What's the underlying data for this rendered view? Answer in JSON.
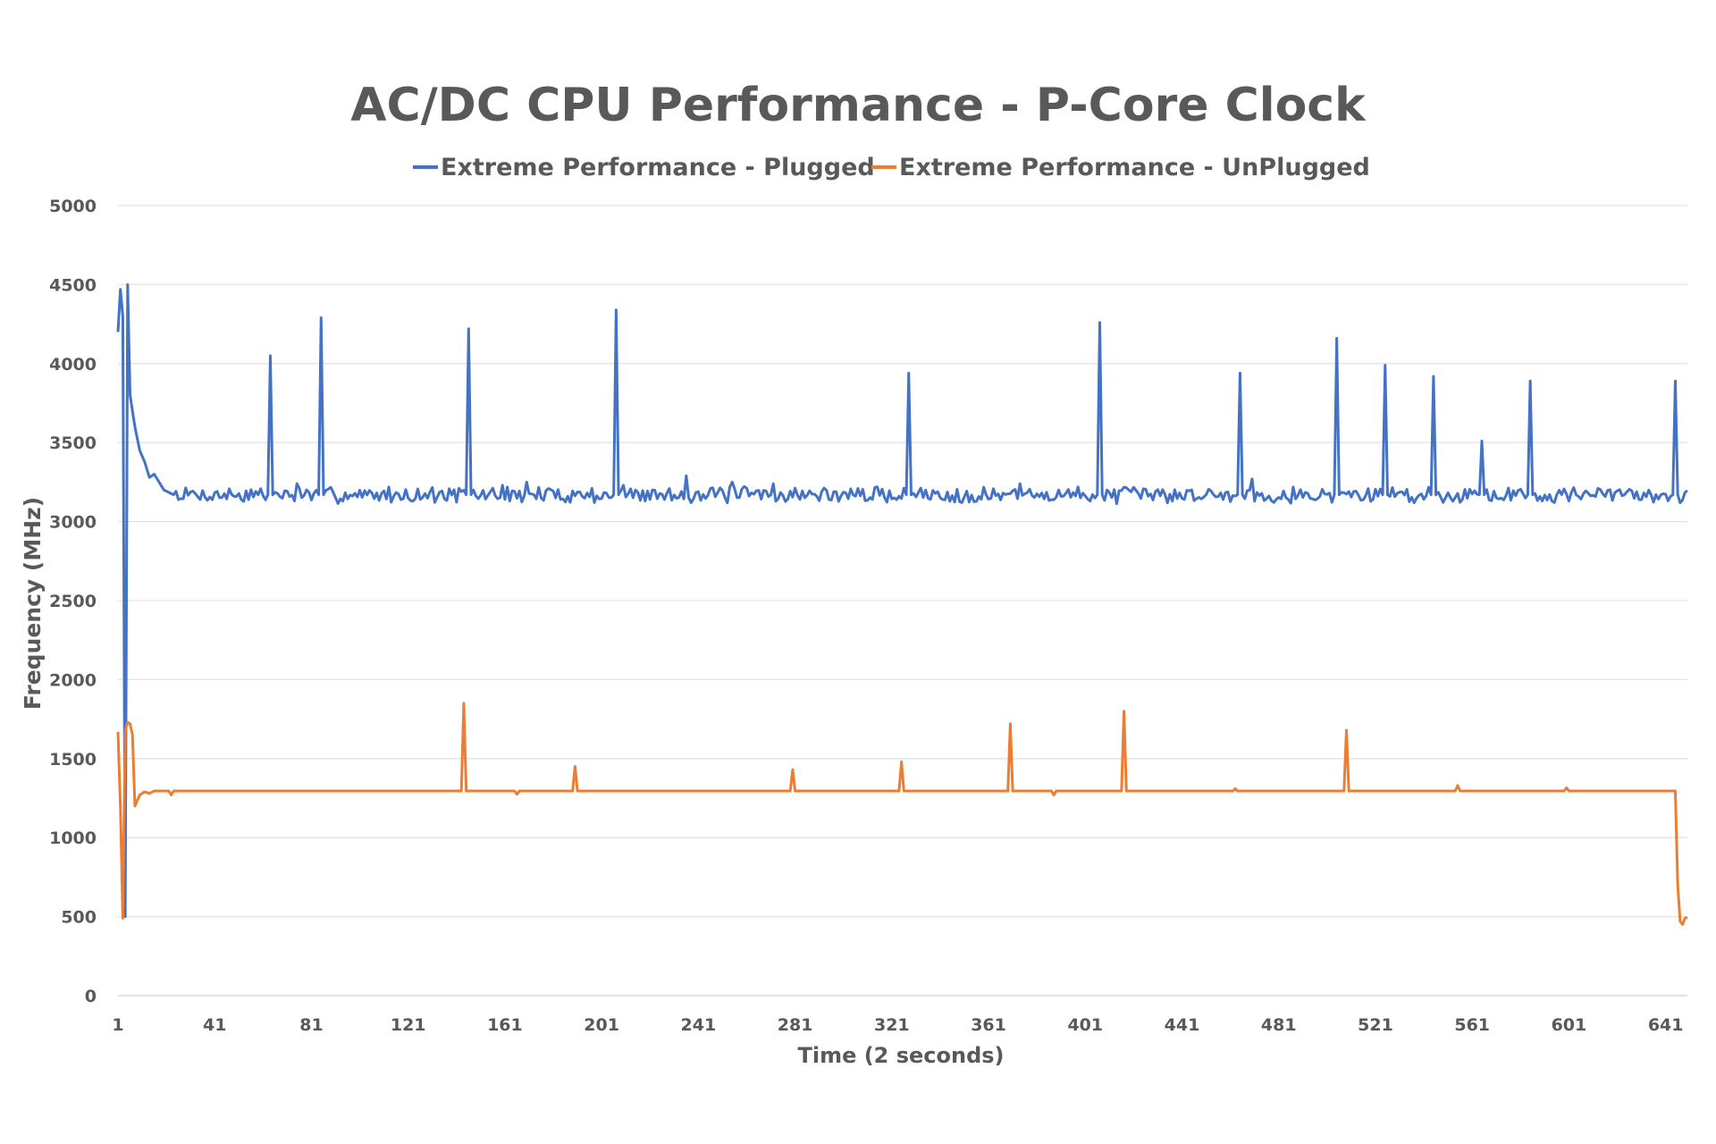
{
  "chart_data": {
    "type": "line",
    "title": "AC/DC CPU Performance - P-Core Clock",
    "xlabel": "Time (2 seconds)",
    "ylabel": "Frequency (MHz)",
    "xlim": [
      1,
      650
    ],
    "ylim": [
      0,
      5000
    ],
    "y_ticks": [
      0,
      500,
      1000,
      1500,
      2000,
      2500,
      3000,
      3500,
      4000,
      4500,
      5000
    ],
    "x_ticks": [
      1,
      41,
      81,
      121,
      161,
      201,
      241,
      281,
      321,
      361,
      401,
      441,
      481,
      521,
      561,
      601,
      641
    ],
    "grid": true,
    "legend_position": "top",
    "series": [
      {
        "name": "Extreme Performance - Plugged",
        "color": "#4472C4",
        "baseline": 3170,
        "noise": 45,
        "seed": 7,
        "points": [
          [
            1,
            4200
          ],
          [
            2,
            4470
          ],
          [
            3,
            4300
          ],
          [
            4,
            500
          ],
          [
            5,
            4500
          ],
          [
            6,
            3800
          ],
          [
            8,
            3600
          ],
          [
            10,
            3450
          ],
          [
            12,
            3380
          ],
          [
            14,
            3280
          ],
          [
            16,
            3300
          ],
          [
            18,
            3250
          ],
          [
            20,
            3200
          ],
          [
            24,
            3170
          ]
        ],
        "spikes": [
          [
            64,
            4050
          ],
          [
            85,
            4290
          ],
          [
            146,
            4220
          ],
          [
            207,
            4340
          ],
          [
            328,
            3940
          ],
          [
            407,
            4260
          ],
          [
            465,
            3940
          ],
          [
            505,
            4160
          ],
          [
            525,
            3990
          ],
          [
            545,
            3920
          ],
          [
            565,
            3510
          ],
          [
            585,
            3890
          ],
          [
            645,
            3890
          ]
        ],
        "bumps": [
          [
            75,
            3240
          ],
          [
            160,
            3230
          ],
          [
            170,
            3250
          ],
          [
            210,
            3230
          ],
          [
            236,
            3290
          ],
          [
            255,
            3250
          ],
          [
            272,
            3240
          ],
          [
            374,
            3240
          ],
          [
            400,
            3180
          ],
          [
            470,
            3270
          ]
        ]
      },
      {
        "name": "Extreme Performance - UnPlugged",
        "color": "#ED7D31",
        "baseline": 1295,
        "points": [
          [
            1,
            1670
          ],
          [
            2,
            1200
          ],
          [
            3,
            490
          ],
          [
            4,
            1680
          ],
          [
            5,
            1730
          ],
          [
            6,
            1720
          ],
          [
            7,
            1650
          ],
          [
            8,
            1200
          ],
          [
            10,
            1270
          ],
          [
            12,
            1290
          ],
          [
            14,
            1280
          ],
          [
            16,
            1295
          ],
          [
            22,
            1295
          ],
          [
            23,
            1270
          ],
          [
            24,
            1295
          ]
        ],
        "spikes": [
          [
            144,
            1850
          ],
          [
            190,
            1450
          ],
          [
            280,
            1430
          ],
          [
            325,
            1480
          ],
          [
            370,
            1720
          ],
          [
            417,
            1800
          ],
          [
            509,
            1680
          ]
        ],
        "dips": [
          [
            166,
            1275
          ],
          [
            388,
            1270
          ]
        ],
        "bumps": [
          [
            463,
            1310
          ],
          [
            555,
            1330
          ],
          [
            600,
            1315
          ]
        ],
        "tail": [
          [
            645,
            1295
          ],
          [
            646,
            700
          ],
          [
            647,
            470
          ],
          [
            648,
            450
          ],
          [
            649,
            490
          ],
          [
            650,
            495
          ]
        ]
      }
    ]
  }
}
